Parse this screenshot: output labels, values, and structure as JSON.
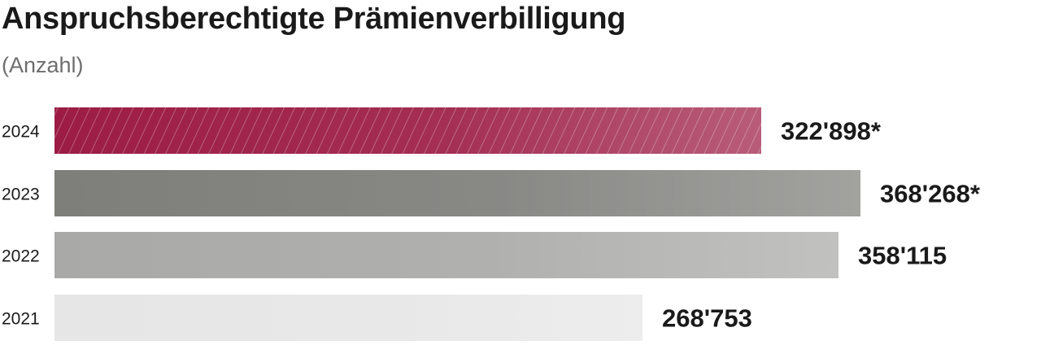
{
  "chart_data": {
    "type": "bar",
    "orientation": "horizontal",
    "title": "Anspruchsberechtigte Prämienverbilligung",
    "subtitle": "(Anzahl)",
    "categories": [
      "2024",
      "2023",
      "2022",
      "2021"
    ],
    "values": [
      322898,
      368268,
      358115,
      268753
    ],
    "value_labels": [
      "322'898*",
      "368'268*",
      "358'115",
      "268'753"
    ],
    "colors": [
      "#9c1c45",
      "#7e7e7a",
      "#a9a9a7",
      "#e6e6e6"
    ],
    "hatched": [
      true,
      false,
      false,
      false
    ],
    "xlim": [
      0,
      368268
    ],
    "grid": false,
    "legend": "none"
  }
}
